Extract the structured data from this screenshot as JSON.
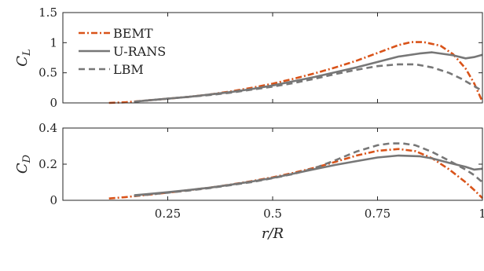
{
  "chart_data": [
    {
      "type": "line",
      "id": "cl",
      "ylabel_main": "C",
      "ylabel_sub": "L",
      "xlim": [
        0,
        1
      ],
      "ylim": [
        0,
        1.5
      ],
      "xticks": [
        0.25,
        0.5,
        0.75,
        1
      ],
      "xtick_labels": [
        "",
        "",
        "",
        ""
      ],
      "yticks": [
        0,
        0.5,
        1,
        1.5
      ],
      "ytick_labels": [
        "0",
        "0.5",
        "1",
        "1.5"
      ],
      "legend": "top-left",
      "grid": false,
      "series": [
        {
          "name": "BEMT",
          "color": "#D95319",
          "dash": "dashdot",
          "x": [
            0.11,
            0.15,
            0.2,
            0.25,
            0.3,
            0.35,
            0.4,
            0.45,
            0.5,
            0.55,
            0.6,
            0.65,
            0.7,
            0.75,
            0.8,
            0.83,
            0.86,
            0.9,
            0.93,
            0.96,
            0.98,
            1.0
          ],
          "y": [
            0.0,
            0.01,
            0.04,
            0.07,
            0.1,
            0.14,
            0.19,
            0.25,
            0.32,
            0.4,
            0.49,
            0.59,
            0.7,
            0.83,
            0.96,
            1.01,
            1.01,
            0.95,
            0.81,
            0.57,
            0.33,
            0.02
          ]
        },
        {
          "name": "U-RANS",
          "color": "#777777",
          "dash": "solid",
          "x": [
            0.17,
            0.2,
            0.25,
            0.3,
            0.35,
            0.4,
            0.45,
            0.5,
            0.55,
            0.6,
            0.65,
            0.7,
            0.75,
            0.8,
            0.85,
            0.88,
            0.9,
            0.93,
            0.96,
            0.98,
            1.0
          ],
          "y": [
            0.02,
            0.04,
            0.07,
            0.1,
            0.14,
            0.18,
            0.23,
            0.29,
            0.36,
            0.43,
            0.51,
            0.59,
            0.68,
            0.77,
            0.82,
            0.84,
            0.82,
            0.79,
            0.74,
            0.76,
            0.8
          ]
        },
        {
          "name": "LBM",
          "color": "#777777",
          "dash": "dashed",
          "x": [
            0.17,
            0.2,
            0.25,
            0.3,
            0.35,
            0.4,
            0.45,
            0.5,
            0.55,
            0.6,
            0.65,
            0.7,
            0.75,
            0.8,
            0.84,
            0.88,
            0.92,
            0.95,
            0.98,
            1.0
          ],
          "y": [
            0.02,
            0.04,
            0.07,
            0.1,
            0.13,
            0.17,
            0.22,
            0.27,
            0.33,
            0.4,
            0.48,
            0.55,
            0.61,
            0.64,
            0.64,
            0.59,
            0.5,
            0.4,
            0.28,
            0.2
          ]
        }
      ]
    },
    {
      "type": "line",
      "id": "cd",
      "ylabel_main": "C",
      "ylabel_sub": "D",
      "xlabel": "r/R",
      "xlim": [
        0,
        1
      ],
      "ylim": [
        0,
        0.4
      ],
      "xticks": [
        0.25,
        0.5,
        0.75,
        1
      ],
      "xtick_labels": [
        "0.25",
        "0.5",
        "0.75",
        "1"
      ],
      "yticks": [
        0,
        0.2,
        0.4
      ],
      "ytick_labels": [
        "0",
        "0.2",
        "0.4"
      ],
      "grid": false,
      "series": [
        {
          "name": "BEMT",
          "color": "#D95319",
          "dash": "dashdot",
          "x": [
            0.11,
            0.15,
            0.2,
            0.25,
            0.3,
            0.35,
            0.4,
            0.45,
            0.5,
            0.55,
            0.6,
            0.65,
            0.7,
            0.75,
            0.8,
            0.84,
            0.88,
            0.92,
            0.96,
            0.98,
            1.0
          ],
          "y": [
            0.01,
            0.018,
            0.03,
            0.042,
            0.056,
            0.07,
            0.087,
            0.106,
            0.127,
            0.152,
            0.18,
            0.213,
            0.248,
            0.274,
            0.284,
            0.272,
            0.233,
            0.172,
            0.1,
            0.058,
            0.012
          ]
        },
        {
          "name": "U-RANS",
          "color": "#777777",
          "dash": "solid",
          "x": [
            0.17,
            0.2,
            0.25,
            0.3,
            0.35,
            0.4,
            0.45,
            0.5,
            0.55,
            0.6,
            0.65,
            0.7,
            0.75,
            0.8,
            0.85,
            0.88,
            0.92,
            0.96,
            0.98,
            1.0
          ],
          "y": [
            0.028,
            0.034,
            0.045,
            0.057,
            0.07,
            0.086,
            0.104,
            0.124,
            0.148,
            0.172,
            0.196,
            0.217,
            0.237,
            0.248,
            0.244,
            0.232,
            0.208,
            0.185,
            0.17,
            0.175
          ]
        },
        {
          "name": "LBM",
          "color": "#777777",
          "dash": "dashed",
          "x": [
            0.17,
            0.2,
            0.25,
            0.3,
            0.35,
            0.4,
            0.45,
            0.5,
            0.55,
            0.6,
            0.65,
            0.7,
            0.75,
            0.78,
            0.81,
            0.84,
            0.88,
            0.92,
            0.96,
            0.98,
            1.0
          ],
          "y": [
            0.025,
            0.031,
            0.042,
            0.054,
            0.068,
            0.084,
            0.101,
            0.122,
            0.146,
            0.178,
            0.222,
            0.27,
            0.305,
            0.315,
            0.315,
            0.305,
            0.268,
            0.22,
            0.17,
            0.14,
            0.1
          ]
        }
      ]
    }
  ]
}
